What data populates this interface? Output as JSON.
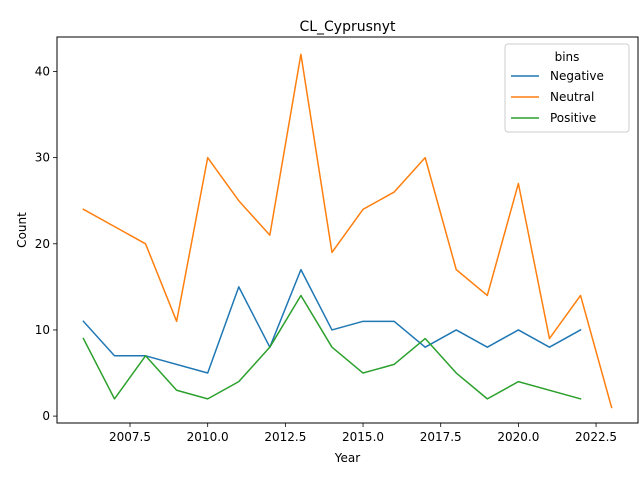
{
  "chart_data": {
    "type": "line",
    "title": "CL_Cyprusnyt",
    "xlabel": "Year",
    "ylabel": "Count",
    "xlim": [
      2005.15,
      2023.85
    ],
    "ylim": [
      -0.8,
      44.0
    ],
    "xticks": [
      2007.5,
      2010.0,
      2012.5,
      2015.0,
      2017.5,
      2020.0,
      2022.5
    ],
    "xtick_labels": [
      "2007.5",
      "2010.0",
      "2012.5",
      "2015.0",
      "2017.5",
      "2020.0",
      "2022.5"
    ],
    "yticks": [
      0,
      10,
      20,
      30,
      40
    ],
    "ytick_labels": [
      "0",
      "10",
      "20",
      "30",
      "40"
    ],
    "grid": false,
    "legend": {
      "title": "bins",
      "placement": "top-right"
    },
    "series": [
      {
        "name": "Negative",
        "color": "#1f77b4",
        "x": [
          2006,
          2007,
          2008,
          2010,
          2011,
          2012,
          2013,
          2014,
          2015,
          2016,
          2017,
          2018,
          2019,
          2020,
          2021,
          2022
        ],
        "values": [
          11,
          7,
          7,
          5,
          15,
          8,
          17,
          10,
          11,
          11,
          8,
          10,
          8,
          10,
          8,
          10
        ]
      },
      {
        "name": "Neutral",
        "color": "#ff7f0e",
        "x": [
          2006,
          2008,
          2009,
          2010,
          2011,
          2012,
          2013,
          2014,
          2015,
          2016,
          2017,
          2018,
          2019,
          2020,
          2021,
          2022,
          2023
        ],
        "values": [
          24,
          20,
          11,
          30,
          25,
          21,
          42,
          19,
          24,
          26,
          30,
          17,
          14,
          27,
          9,
          14,
          1
        ]
      },
      {
        "name": "Positive",
        "color": "#2ca02c",
        "x": [
          2006,
          2007,
          2008,
          2009,
          2010,
          2011,
          2012,
          2013,
          2014,
          2015,
          2016,
          2017,
          2018,
          2019,
          2020,
          2022
        ],
        "values": [
          9,
          2,
          7,
          3,
          2,
          4,
          8,
          14,
          8,
          5,
          6,
          9,
          5,
          2,
          4,
          2
        ]
      }
    ]
  }
}
